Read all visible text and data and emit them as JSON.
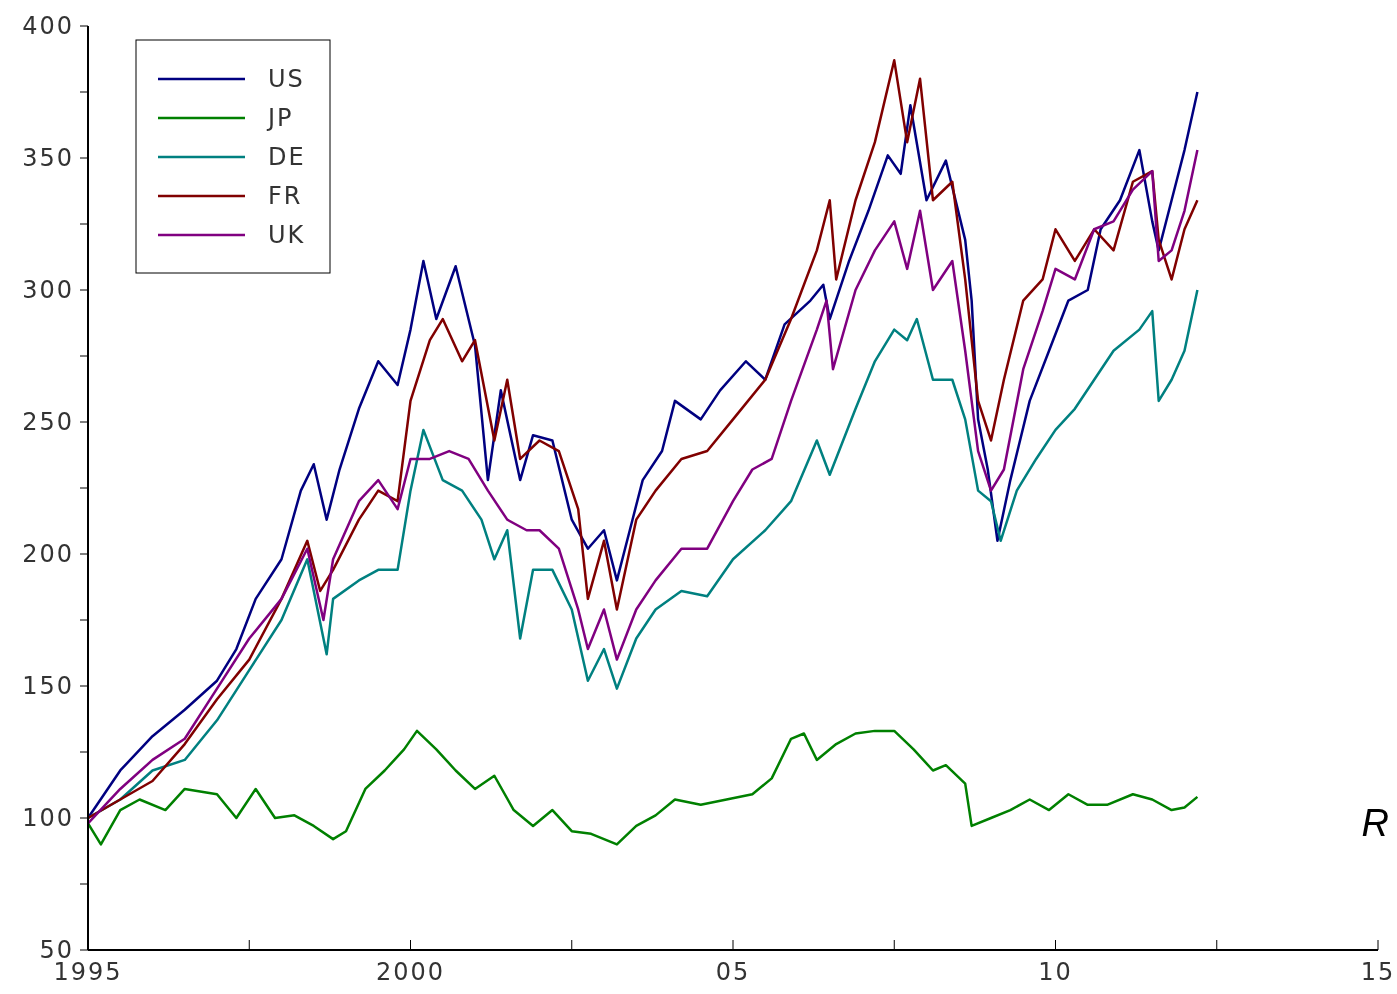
{
  "chart_data": {
    "type": "line",
    "xlim": [
      1995,
      2015
    ],
    "ylim": [
      50,
      400
    ],
    "xticks": [
      {
        "value": 1995,
        "label": "1995"
      },
      {
        "value": 1997.5,
        "label": null
      },
      {
        "value": 2000,
        "label": "2000"
      },
      {
        "value": 2002.5,
        "label": null
      },
      {
        "value": 2005,
        "label": "05"
      },
      {
        "value": 2007.5,
        "label": null
      },
      {
        "value": 2010,
        "label": "10"
      },
      {
        "value": 2012.5,
        "label": null
      },
      {
        "value": 2015,
        "label": "15"
      }
    ],
    "yticks": [
      50,
      {
        "value": 75,
        "label": null
      },
      100,
      {
        "value": 125,
        "label": null
      },
      150,
      {
        "value": 175,
        "label": null
      },
      200,
      {
        "value": 225,
        "label": null
      },
      250,
      {
        "value": 275,
        "label": null
      },
      300,
      {
        "value": 325,
        "label": null
      },
      350,
      {
        "value": 375,
        "label": null
      },
      400
    ],
    "legend": "top left",
    "annotations": [
      "R"
    ],
    "series": [
      {
        "name": "US",
        "color": "#000080",
        "x": [
          1995,
          1995.5,
          1996,
          1996.5,
          1997,
          1997.3,
          1997.6,
          1998,
          1998.3,
          1998.5,
          1998.7,
          1998.9,
          1999.2,
          1999.5,
          1999.8,
          2000,
          2000.2,
          2000.4,
          2000.7,
          2001,
          2001.2,
          2001.4,
          2001.7,
          2001.9,
          2002.2,
          2002.5,
          2002.75,
          2003,
          2003.2,
          2003.4,
          2003.6,
          2003.9,
          2004.1,
          2004.5,
          2004.8,
          2005.2,
          2005.5,
          2005.8,
          2006.2,
          2006.4,
          2006.5,
          2006.8,
          2007.1,
          2007.4,
          2007.6,
          2007.75,
          2008,
          2008.3,
          2008.6,
          2008.7,
          2008.8,
          2008.95,
          2009.1,
          2009.3,
          2009.6,
          2009.9,
          2010.2,
          2010.5,
          2010.7,
          2011,
          2011.3,
          2011.5,
          2011.6,
          2011.8,
          2012,
          2012.2
        ],
        "values": [
          100,
          118,
          131,
          141,
          152,
          164,
          183,
          198,
          224,
          234,
          213,
          232,
          255,
          273,
          264,
          285,
          311,
          289,
          309,
          279,
          228,
          262,
          228,
          245,
          243,
          213,
          202,
          209,
          190,
          209,
          228,
          239,
          258,
          251,
          262,
          273,
          266,
          287,
          296,
          302,
          289,
          311,
          330,
          351,
          344,
          370,
          334,
          349,
          319,
          296,
          251,
          232,
          205,
          228,
          258,
          277,
          296,
          300,
          323,
          334,
          353,
          326,
          315,
          334,
          353,
          375
        ]
      },
      {
        "name": "JP",
        "color": "#008000",
        "x": [
          1995,
          1995.2,
          1995.5,
          1995.8,
          1996.2,
          1996.5,
          1997,
          1997.3,
          1997.6,
          1997.9,
          1998.2,
          1998.5,
          1998.8,
          1999,
          1999.3,
          1999.6,
          1999.9,
          2000.1,
          2000.4,
          2000.7,
          2001,
          2001.3,
          2001.6,
          2001.9,
          2002.2,
          2002.5,
          2002.8,
          2003.2,
          2003.5,
          2003.8,
          2004.1,
          2004.5,
          2004.9,
          2005.3,
          2005.6,
          2005.9,
          2006.1,
          2006.3,
          2006.6,
          2006.9,
          2007.2,
          2007.5,
          2007.8,
          2008.1,
          2008.3,
          2008.6,
          2008.7,
          2009,
          2009.3,
          2009.6,
          2009.9,
          2010.2,
          2010.5,
          2010.8,
          2011.2,
          2011.5,
          2011.8,
          2012,
          2012.2
        ],
        "values": [
          98,
          90,
          103,
          107,
          103,
          111,
          109,
          100,
          111,
          100,
          101,
          97,
          92,
          95,
          111,
          118,
          126,
          133,
          126,
          118,
          111,
          116,
          103,
          97,
          103,
          95,
          94,
          90,
          97,
          101,
          107,
          105,
          107,
          109,
          115,
          130,
          132,
          122,
          128,
          132,
          133,
          133,
          126,
          118,
          120,
          113,
          97,
          100,
          103,
          107,
          103,
          109,
          105,
          105,
          109,
          107,
          103,
          104,
          108
        ]
      },
      {
        "name": "DE",
        "color": "#008080",
        "x": [
          1995,
          1995.5,
          1996,
          1996.5,
          1997,
          1997.5,
          1998,
          1998.4,
          1998.7,
          1998.8,
          1999.2,
          1999.5,
          1999.8,
          2000,
          2000.2,
          2000.5,
          2000.8,
          2001.1,
          2001.3,
          2001.5,
          2001.7,
          2001.9,
          2002.2,
          2002.5,
          2002.75,
          2003,
          2003.2,
          2003.5,
          2003.8,
          2004.2,
          2004.6,
          2005,
          2005.5,
          2005.9,
          2006.3,
          2006.5,
          2006.9,
          2007.2,
          2007.5,
          2007.7,
          2007.85,
          2008.1,
          2008.4,
          2008.6,
          2008.8,
          2009,
          2009.15,
          2009.4,
          2009.7,
          2010,
          2010.3,
          2010.6,
          2010.9,
          2011.3,
          2011.5,
          2011.6,
          2011.8,
          2012,
          2012.2
        ],
        "values": [
          100,
          107,
          118,
          122,
          137,
          156,
          175,
          198,
          162,
          183,
          190,
          194,
          194,
          224,
          247,
          228,
          224,
          213,
          198,
          209,
          168,
          194,
          194,
          179,
          152,
          164,
          149,
          168,
          179,
          186,
          184,
          198,
          209,
          220,
          243,
          230,
          255,
          273,
          285,
          281,
          289,
          266,
          266,
          251,
          224,
          220,
          205,
          224,
          236,
          247,
          255,
          266,
          277,
          285,
          292,
          258,
          266,
          277,
          300
        ]
      },
      {
        "name": "FR",
        "color": "#800000",
        "x": [
          1995,
          1995.5,
          1996,
          1996.5,
          1997,
          1997.5,
          1998,
          1998.4,
          1998.6,
          1998.8,
          1999.2,
          1999.5,
          1999.8,
          2000,
          2000.3,
          2000.5,
          2000.8,
          2001,
          2001.3,
          2001.5,
          2001.7,
          2002,
          2002.3,
          2002.6,
          2002.75,
          2003,
          2003.2,
          2003.5,
          2003.8,
          2004.2,
          2004.6,
          2005,
          2005.5,
          2005.9,
          2006.3,
          2006.5,
          2006.6,
          2006.9,
          2007.2,
          2007.5,
          2007.7,
          2007.9,
          2008.1,
          2008.4,
          2008.6,
          2008.8,
          2009,
          2009.2,
          2009.5,
          2009.8,
          2010,
          2010.3,
          2010.6,
          2010.9,
          2011.2,
          2011.5,
          2011.6,
          2011.8,
          2012,
          2012.2
        ],
        "values": [
          100,
          107,
          114,
          128,
          145,
          160,
          183,
          205,
          186,
          194,
          213,
          224,
          220,
          258,
          281,
          289,
          273,
          281,
          243,
          266,
          236,
          243,
          239,
          217,
          183,
          205,
          179,
          213,
          224,
          236,
          239,
          251,
          266,
          289,
          315,
          334,
          304,
          334,
          356,
          387,
          356,
          380,
          334,
          341,
          304,
          258,
          243,
          266,
          296,
          304,
          323,
          311,
          323,
          315,
          341,
          345,
          319,
          304,
          323,
          334
        ]
      },
      {
        "name": "UK",
        "color": "#800080",
        "x": [
          1995,
          1995.5,
          1996,
          1996.5,
          1997,
          1997.5,
          1998,
          1998.4,
          1998.65,
          1998.8,
          1999.2,
          1999.5,
          1999.8,
          2000,
          2000.3,
          2000.6,
          2000.9,
          2001.2,
          2001.5,
          2001.8,
          2002,
          2002.3,
          2002.6,
          2002.75,
          2003,
          2003.2,
          2003.5,
          2003.8,
          2004.2,
          2004.6,
          2005,
          2005.3,
          2005.6,
          2005.9,
          2006.3,
          2006.45,
          2006.55,
          2006.9,
          2007.2,
          2007.5,
          2007.7,
          2007.9,
          2008.1,
          2008.4,
          2008.6,
          2008.8,
          2009,
          2009.2,
          2009.5,
          2009.8,
          2010,
          2010.3,
          2010.6,
          2010.9,
          2011.2,
          2011.5,
          2011.6,
          2011.8,
          2012,
          2012.2
        ],
        "values": [
          98,
          111,
          122,
          130,
          149,
          168,
          183,
          202,
          175,
          198,
          220,
          228,
          217,
          236,
          236,
          239,
          236,
          224,
          213,
          209,
          209,
          202,
          179,
          164,
          179,
          160,
          179,
          190,
          202,
          202,
          220,
          232,
          236,
          258,
          285,
          296,
          270,
          300,
          315,
          326,
          308,
          330,
          300,
          311,
          277,
          239,
          224,
          232,
          270,
          292,
          308,
          304,
          323,
          326,
          338,
          345,
          311,
          315,
          330,
          353
        ]
      }
    ]
  }
}
